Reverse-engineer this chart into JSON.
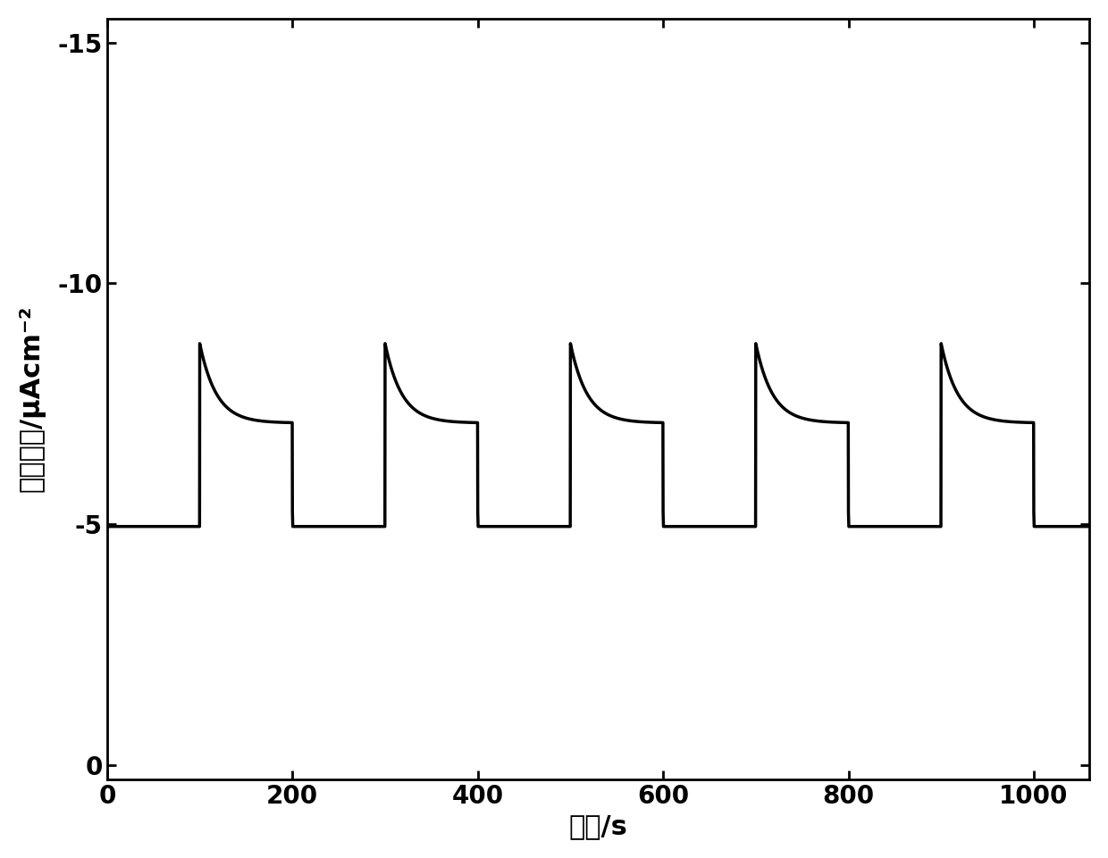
{
  "xlabel": "时间/s",
  "ylabel": "电流密度/μAcm⁻²",
  "xlim": [
    0,
    1060
  ],
  "ylim": [
    0.3,
    -15.5
  ],
  "yticks": [
    0,
    -5,
    -10,
    -15
  ],
  "xticks": [
    0,
    200,
    400,
    600,
    800,
    1000
  ],
  "dark_current": -4.95,
  "spike_peak": -8.75,
  "decay_end": -7.1,
  "light_on_times": [
    100,
    300,
    500,
    700,
    900
  ],
  "light_off_times": [
    200,
    400,
    600,
    800,
    1000
  ],
  "line_color": "#000000",
  "line_width": 2.5,
  "bg_color": "#ffffff",
  "xlabel_fontsize": 22,
  "ylabel_fontsize": 22,
  "tick_fontsize": 20,
  "spike_decay_tau": 18
}
